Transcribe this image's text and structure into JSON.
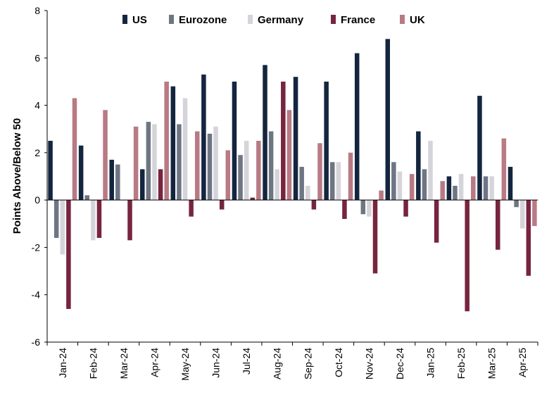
{
  "chart_data": {
    "type": "bar",
    "title": "",
    "xlabel": "",
    "ylabel": "Points Above/Below 50",
    "ylim": [
      -6,
      8
    ],
    "yticks": [
      -6,
      -4,
      -2,
      0,
      2,
      4,
      6,
      8
    ],
    "ytick_labels": [
      "-6",
      "-4",
      "-2",
      "0",
      "2",
      "4",
      "6",
      "8"
    ],
    "grid": false,
    "legend_position": "top",
    "categories": [
      "Jan-24",
      "Feb-24",
      "Mar-24",
      "Apr-24",
      "May-24",
      "Jun-24",
      "Jul-24",
      "Aug-24",
      "Sep-24",
      "Oct-24",
      "Nov-24",
      "Dec-24",
      "Jan-25",
      "Feb-25",
      "Mar-25",
      "Apr-25"
    ],
    "series": [
      {
        "name": "US",
        "color": "#14253f",
        "values": [
          2.5,
          2.3,
          1.7,
          1.3,
          4.8,
          5.3,
          5.0,
          5.7,
          5.2,
          5.0,
          6.2,
          6.8,
          2.9,
          1.0,
          4.4,
          1.4
        ]
      },
      {
        "name": "Eurozone",
        "color": "#6e7583",
        "values": [
          -1.6,
          0.2,
          1.5,
          3.3,
          3.2,
          2.8,
          1.9,
          2.9,
          1.4,
          1.6,
          -0.6,
          1.6,
          1.3,
          0.6,
          1.0,
          -0.3
        ]
      },
      {
        "name": "Germany",
        "color": "#d4d4da",
        "values": [
          -2.3,
          -1.7,
          0.0,
          3.2,
          4.3,
          3.1,
          2.5,
          1.3,
          0.6,
          1.6,
          -0.7,
          1.2,
          2.5,
          1.1,
          1.0,
          -1.2
        ]
      },
      {
        "name": "France",
        "color": "#77243f",
        "values": [
          -4.6,
          -1.6,
          -1.7,
          1.3,
          -0.7,
          -0.4,
          0.1,
          5.0,
          -0.4,
          -0.8,
          -3.1,
          -0.7,
          -1.8,
          -4.7,
          -2.1,
          -3.2
        ]
      },
      {
        "name": "UK",
        "color": "#b87a84",
        "values": [
          4.3,
          3.8,
          3.1,
          5.0,
          2.9,
          2.1,
          2.5,
          3.8,
          2.4,
          2.0,
          0.4,
          1.1,
          0.8,
          1.0,
          2.6,
          -1.1
        ]
      }
    ]
  }
}
